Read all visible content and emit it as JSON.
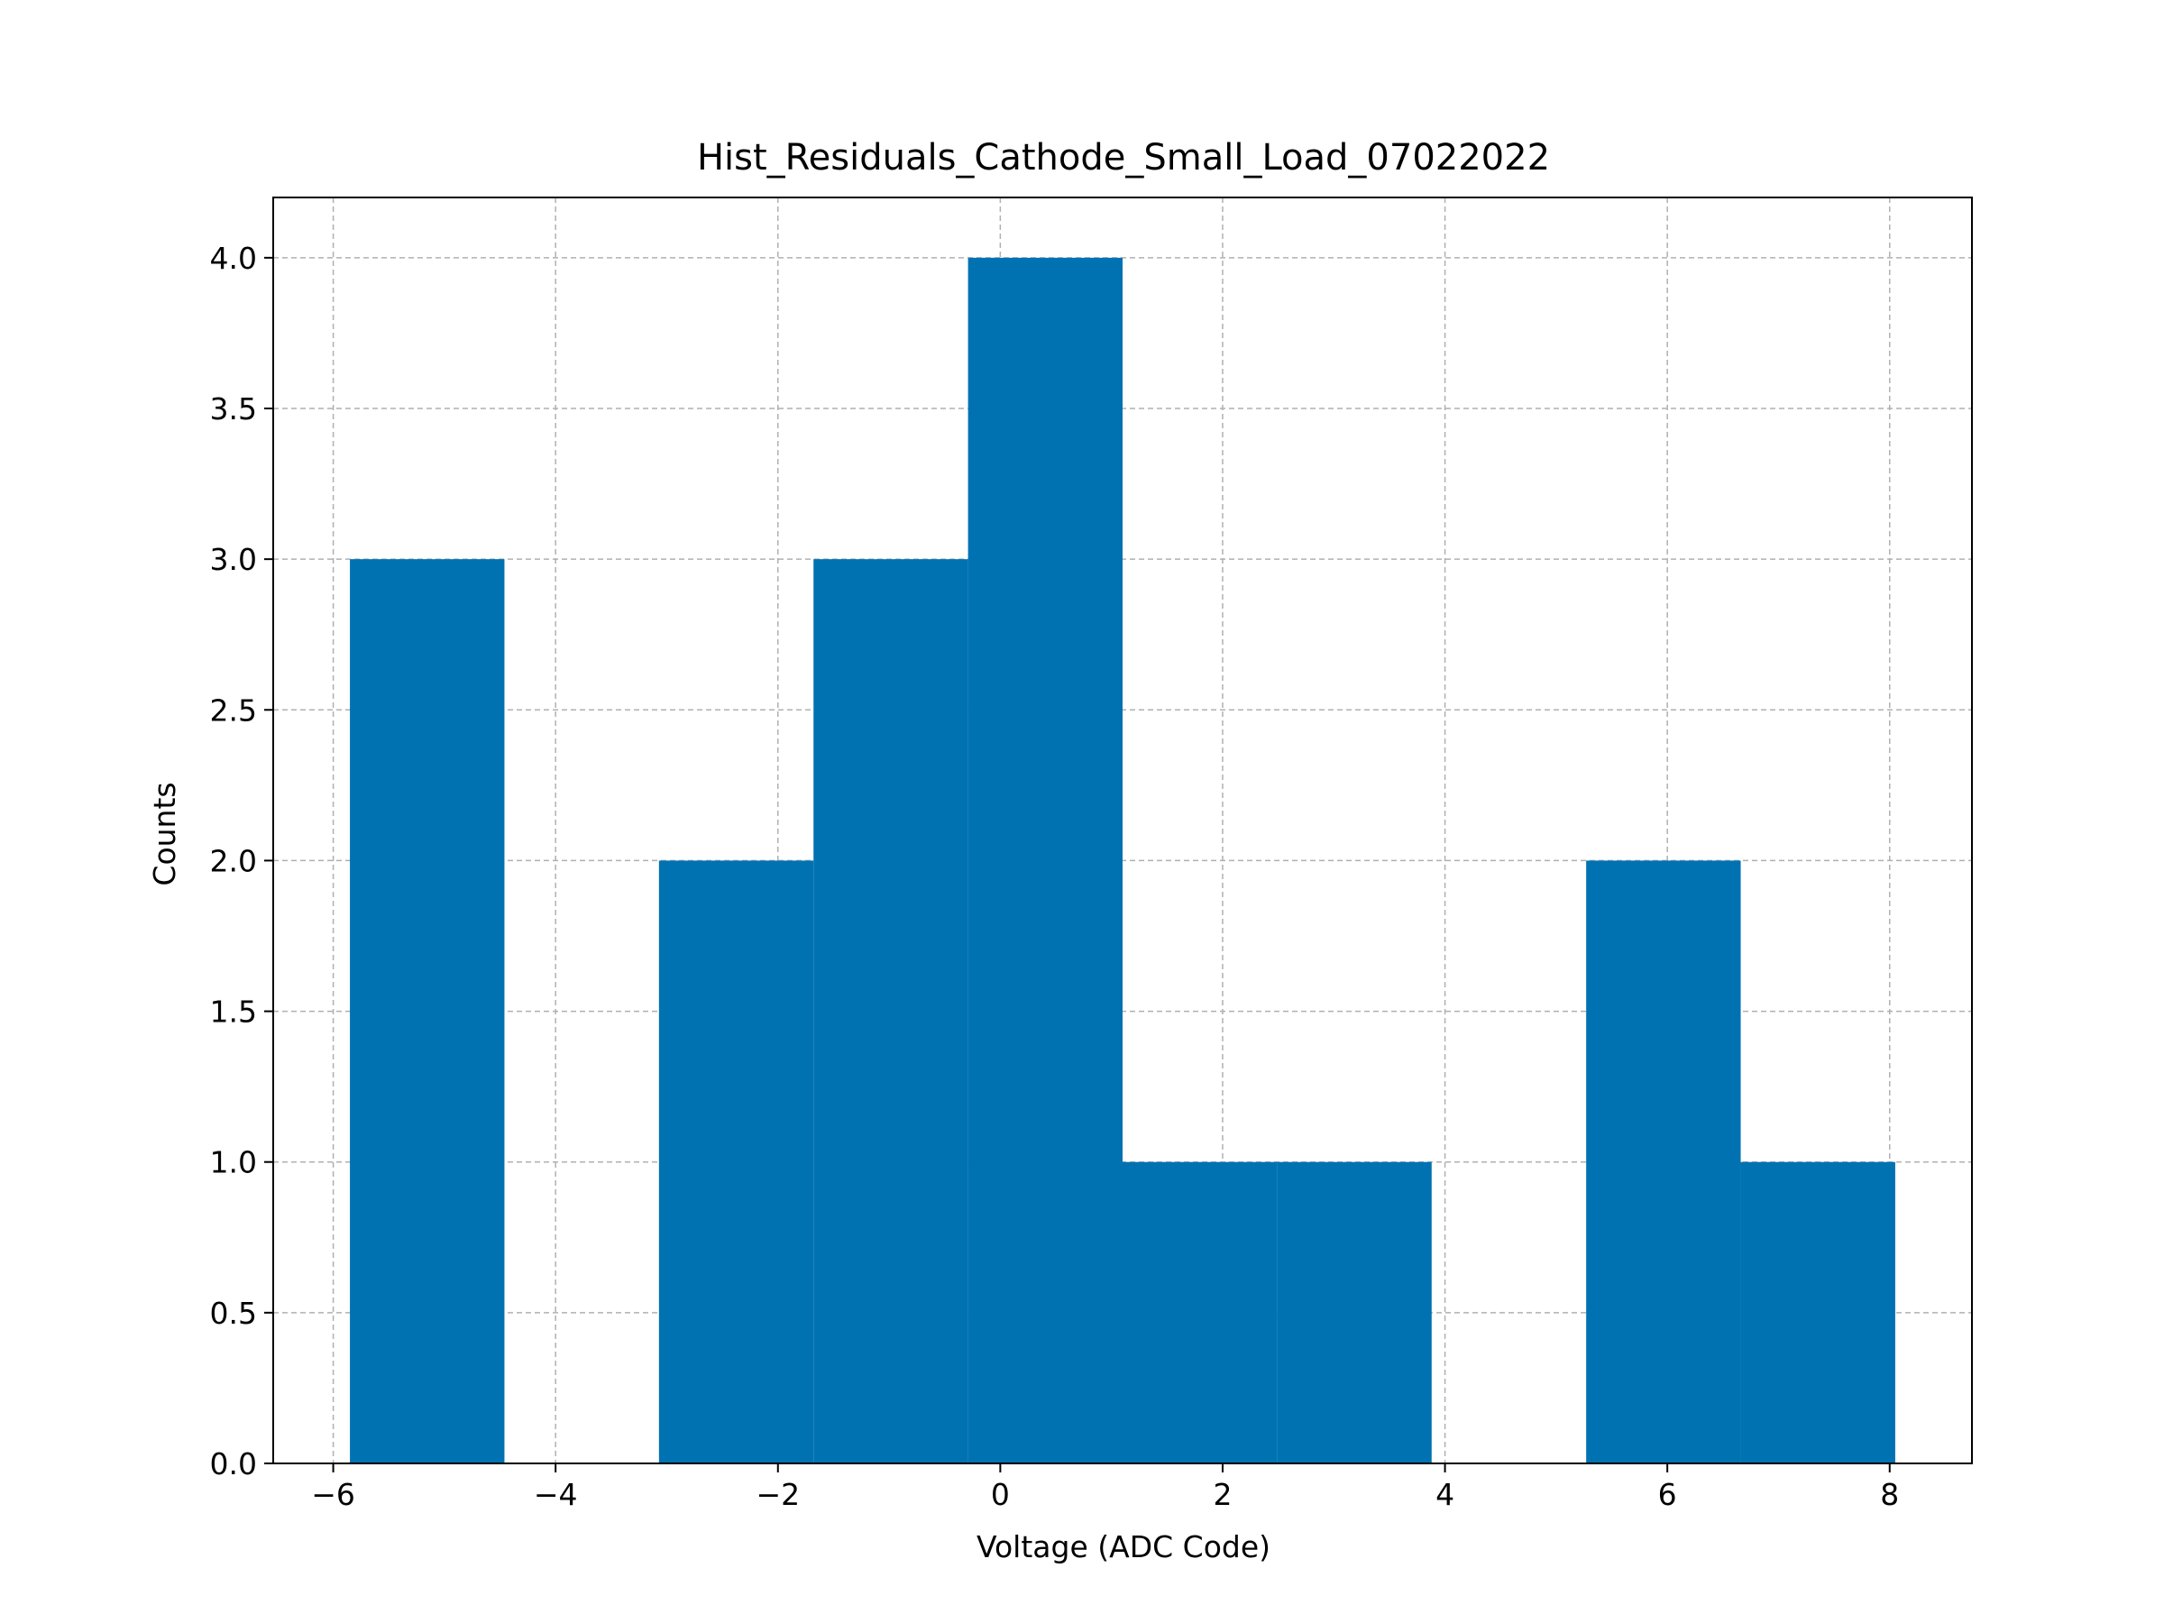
{
  "chart_data": {
    "type": "bar",
    "title": "Hist_Residuals_Cathode_Small_Load_07022022",
    "xlabel": "Voltage (ADC Code)",
    "ylabel": "Counts",
    "xlim": [
      -6.54,
      8.74
    ],
    "ylim": [
      0,
      4.2
    ],
    "xticks": [
      -6,
      -4,
      -2,
      0,
      2,
      4,
      6,
      8
    ],
    "xtick_labels": [
      "−6",
      "−4",
      "−2",
      "0",
      "2",
      "4",
      "6",
      "8"
    ],
    "yticks": [
      0.0,
      0.5,
      1.0,
      1.5,
      2.0,
      2.5,
      3.0,
      3.5,
      4.0
    ],
    "ytick_labels": [
      "0.0",
      "0.5",
      "1.0",
      "1.5",
      "2.0",
      "2.5",
      "3.0",
      "3.5",
      "4.0"
    ],
    "grid": true,
    "bar_color": "#0072b2",
    "bins": [
      {
        "x0": -5.85,
        "x1": -4.46,
        "count": 3
      },
      {
        "x0": -4.46,
        "x1": -3.07,
        "count": 0
      },
      {
        "x0": -3.07,
        "x1": -1.68,
        "count": 2
      },
      {
        "x0": -1.68,
        "x1": -0.29,
        "count": 3
      },
      {
        "x0": -0.29,
        "x1": 1.1,
        "count": 4
      },
      {
        "x0": 1.1,
        "x1": 2.49,
        "count": 1
      },
      {
        "x0": 2.49,
        "x1": 3.88,
        "count": 1
      },
      {
        "x0": 3.88,
        "x1": 5.27,
        "count": 0
      },
      {
        "x0": 5.27,
        "x1": 6.66,
        "count": 2
      },
      {
        "x0": 6.66,
        "x1": 8.05,
        "count": 1
      }
    ]
  }
}
